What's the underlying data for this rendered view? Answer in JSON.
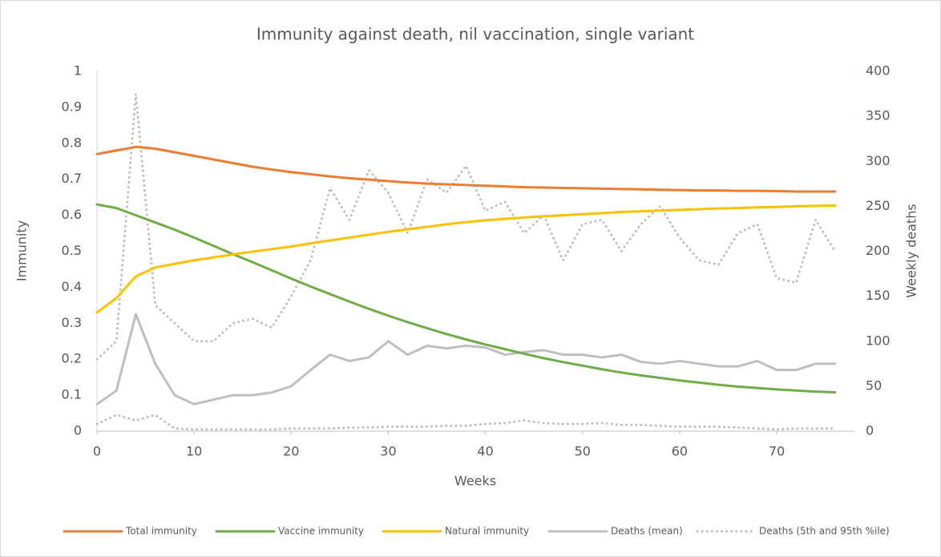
{
  "chart_data": {
    "type": "line",
    "title": "Immunity against death, nil vaccination, single variant",
    "x_label": "Weeks",
    "y_label": "Immunity",
    "y2_label": "Weekly deaths",
    "x": [
      0,
      2,
      4,
      6,
      8,
      10,
      12,
      14,
      16,
      18,
      20,
      22,
      24,
      26,
      28,
      30,
      32,
      34,
      36,
      38,
      40,
      42,
      44,
      46,
      48,
      50,
      52,
      54,
      56,
      58,
      60,
      62,
      64,
      66,
      68,
      70,
      72,
      74,
      76
    ],
    "xlim": [
      0,
      78
    ],
    "xticks": [
      0,
      10,
      20,
      30,
      40,
      50,
      60,
      70
    ],
    "ylim": [
      0,
      1
    ],
    "yticks": [
      0,
      0.1,
      0.2,
      0.3,
      0.4,
      0.5,
      0.6,
      0.7,
      0.8,
      0.9,
      1
    ],
    "y2lim": [
      0,
      400
    ],
    "y2ticks": [
      0,
      50,
      100,
      150,
      200,
      250,
      300,
      350,
      400
    ],
    "legend": "bottom",
    "series": [
      {
        "name": "Total immunity",
        "color": "#ed7d31",
        "values": [
          0.77,
          0.78,
          0.79,
          0.785,
          0.775,
          0.765,
          0.755,
          0.745,
          0.735,
          0.727,
          0.72,
          0.714,
          0.708,
          0.703,
          0.699,
          0.695,
          0.691,
          0.688,
          0.686,
          0.684,
          0.682,
          0.68,
          0.678,
          0.677,
          0.676,
          0.675,
          0.674,
          0.673,
          0.672,
          0.671,
          0.67,
          0.669,
          0.669,
          0.668,
          0.668,
          0.667,
          0.666,
          0.666,
          0.666
        ]
      },
      {
        "name": "Vaccine immunity",
        "color": "#70ad47",
        "values": [
          0.63,
          0.62,
          0.6,
          0.58,
          0.56,
          0.538,
          0.515,
          0.492,
          0.47,
          0.447,
          0.424,
          0.402,
          0.381,
          0.36,
          0.34,
          0.321,
          0.303,
          0.286,
          0.27,
          0.255,
          0.241,
          0.228,
          0.215,
          0.203,
          0.192,
          0.182,
          0.172,
          0.163,
          0.155,
          0.148,
          0.141,
          0.135,
          0.129,
          0.124,
          0.12,
          0.116,
          0.113,
          0.11,
          0.108
        ]
      },
      {
        "name": "Natural immunity",
        "color": "#ffc000",
        "values": [
          0.33,
          0.37,
          0.43,
          0.455,
          0.465,
          0.475,
          0.483,
          0.491,
          0.499,
          0.506,
          0.513,
          0.522,
          0.53,
          0.538,
          0.546,
          0.554,
          0.561,
          0.568,
          0.575,
          0.581,
          0.586,
          0.59,
          0.594,
          0.597,
          0.6,
          0.603,
          0.606,
          0.609,
          0.611,
          0.613,
          0.615,
          0.617,
          0.619,
          0.62,
          0.622,
          0.623,
          0.625,
          0.626,
          0.627
        ]
      },
      {
        "name": "Deaths (mean)",
        "color": "#bfbfbf",
        "axis": "y2",
        "values": [
          30,
          45,
          130,
          75,
          40,
          30,
          35,
          40,
          40,
          43,
          50,
          68,
          85,
          78,
          82,
          100,
          85,
          95,
          92,
          95,
          93,
          85,
          88,
          90,
          85,
          85,
          82,
          85,
          77,
          75,
          78,
          75,
          72,
          72,
          78,
          68,
          68,
          75,
          75
        ]
      },
      {
        "name": "Deaths (5th and 95th %ile)",
        "color": "#bfbfbf",
        "axis": "y2",
        "dash": true,
        "values": [
          80,
          100,
          375,
          140,
          120,
          100,
          100,
          120,
          125,
          115,
          150,
          190,
          270,
          235,
          290,
          265,
          220,
          280,
          265,
          295,
          245,
          255,
          220,
          240,
          190,
          230,
          235,
          200,
          230,
          250,
          215,
          190,
          185,
          220,
          230,
          170,
          165,
          235,
          200
        ],
        "lower": [
          8,
          18,
          12,
          18,
          3,
          2,
          2,
          2,
          2,
          2,
          3,
          3,
          3,
          4,
          4,
          5,
          5,
          5,
          6,
          6,
          8,
          9,
          12,
          9,
          8,
          8,
          9,
          7,
          7,
          6,
          5,
          5,
          5,
          4,
          3,
          2,
          3,
          3,
          3
        ]
      }
    ]
  }
}
